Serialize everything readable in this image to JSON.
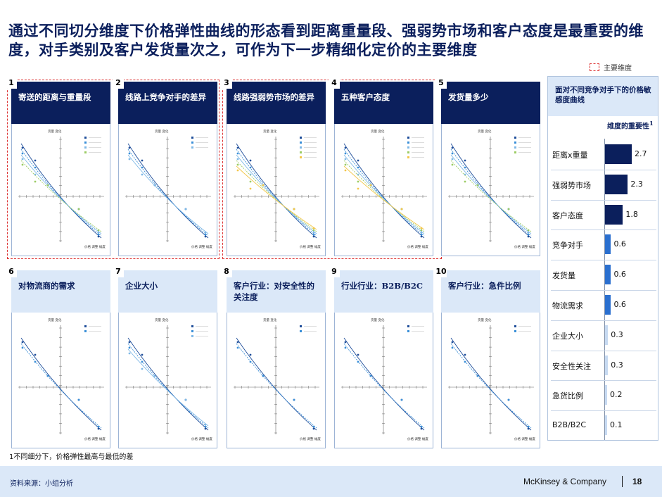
{
  "title": "通过不同切分维度下价格弹性曲线的形态看到距离重量段、强弱势市场和客户态度是最重要的维度，对手类别及客户发货量次之，可作为下一步精细化定价的主要维度",
  "legend_key": "主要维度",
  "panels": [
    {
      "num": "1",
      "label": "寄送的距离与重量段",
      "style": "dark",
      "major": true
    },
    {
      "num": "2",
      "label": "线路上竞争对手的差异",
      "style": "dark",
      "major": true
    },
    {
      "num": "3",
      "label": "线路强弱势市场的差异",
      "style": "dark",
      "major": true
    },
    {
      "num": "4",
      "label": "五种客户态度",
      "style": "dark",
      "major": true
    },
    {
      "num": "5",
      "label": "发货量多少",
      "style": "dark",
      "major": false
    },
    {
      "num": "6",
      "label": "对物流商的需求",
      "style": "light",
      "major": false
    },
    {
      "num": "7",
      "label": "企业大小",
      "style": "light",
      "major": false
    },
    {
      "num": "8",
      "label": "客户行业：对安全性的关注度",
      "style": "light",
      "major": false
    },
    {
      "num": "9",
      "label": "行业行业：B2B/B2C",
      "style": "light",
      "major": false
    },
    {
      "num": "10",
      "label": "客户行业：急件比例",
      "style": "light",
      "major": false
    }
  ],
  "mini_chart": {
    "ylabel": "货量 变化",
    "xlabel": "价格 调整 幅度"
  },
  "side_panel": {
    "title": "面对不同竞争对手下的价格敏感度曲线",
    "col_header": "维度的重要性",
    "col_header_sup": "1",
    "accent": "#0b1f5c",
    "light_accent": "#2a6fcf"
  },
  "chart_data": {
    "type": "bar",
    "orientation": "horizontal",
    "categories": [
      "距离x重量",
      "强弱势市场",
      "客户态度",
      "竞争对手",
      "发货量",
      "物流需求",
      "企业大小",
      "安全性关注",
      "急货比例",
      "B2B/B2C"
    ],
    "values": [
      2.7,
      2.3,
      1.8,
      0.6,
      0.6,
      0.6,
      0.3,
      0.3,
      0.2,
      0.1
    ],
    "xlim": [
      0,
      3.0
    ]
  },
  "footnote": "1不同细分下，价格弹性最高与最低的差",
  "footer": {
    "source": "资料来源：小组分析",
    "brand": "McKinsey & Company",
    "page": "18"
  }
}
